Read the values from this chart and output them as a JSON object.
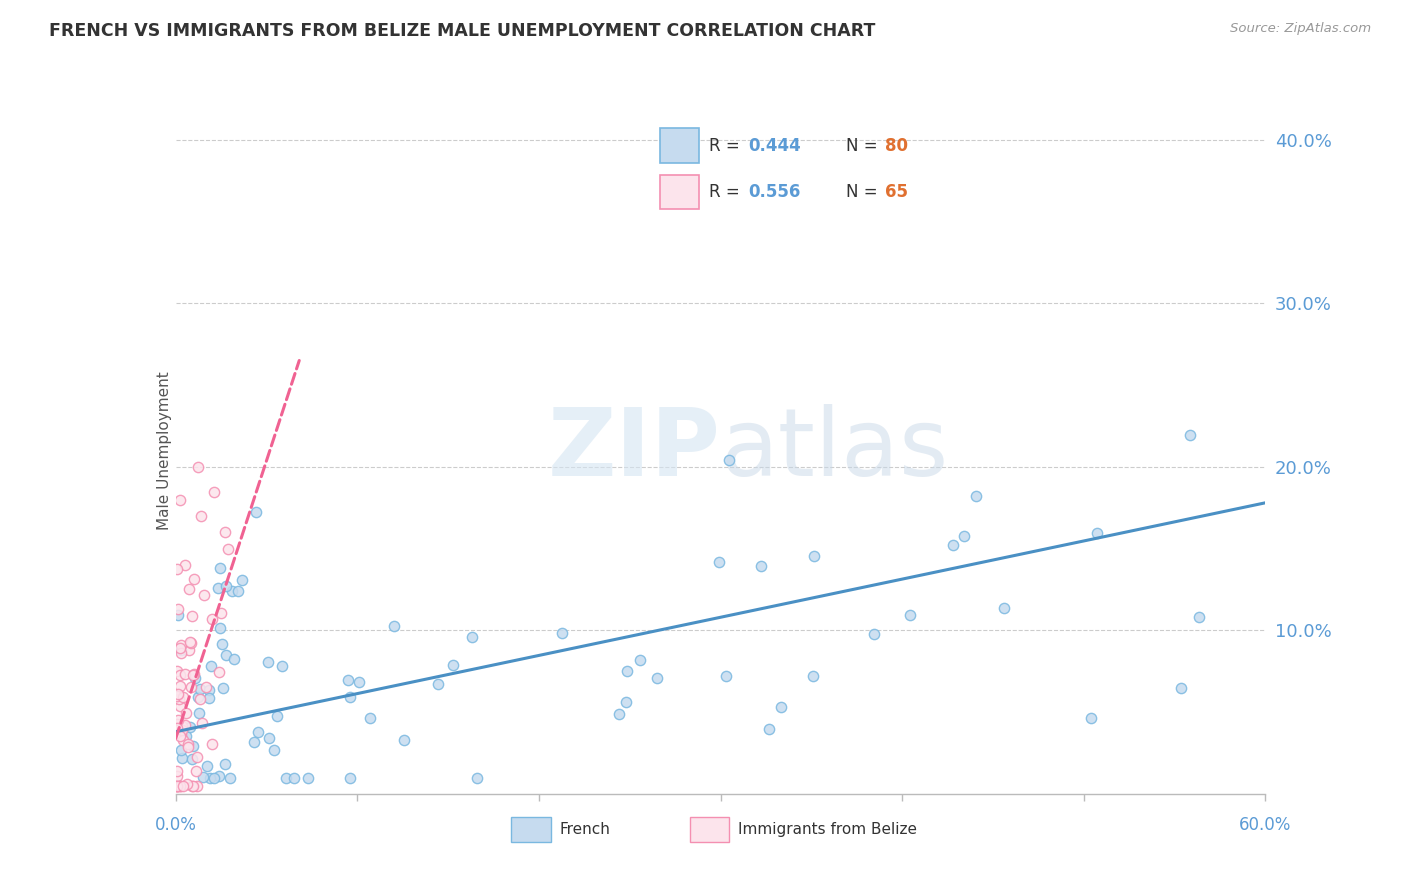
{
  "title": "FRENCH VS IMMIGRANTS FROM BELIZE MALE UNEMPLOYMENT CORRELATION CHART",
  "source": "Source: ZipAtlas.com",
  "ylabel": "Male Unemployment",
  "xlim": [
    0.0,
    0.6
  ],
  "ylim": [
    0.0,
    0.42
  ],
  "yticks": [
    0.1,
    0.2,
    0.3,
    0.4
  ],
  "ytick_labels": [
    "10.0%",
    "20.0%",
    "30.0%",
    "40.0%"
  ],
  "legend_R1": "0.444",
  "legend_N1": "80",
  "legend_R2": "0.556",
  "legend_N2": "65",
  "color_french": "#7ab8e0",
  "color_belize": "#f48fb1",
  "color_french_fill": "#c6dbef",
  "color_belize_fill": "#fce4ec",
  "color_french_line": "#4a90c4",
  "color_belize_line": "#f06292",
  "watermark_zip": "ZIP",
  "watermark_atlas": "atlas",
  "french_line_x": [
    0.0,
    0.6
  ],
  "french_line_y": [
    0.038,
    0.178
  ],
  "belize_line_x": [
    0.0,
    0.068
  ],
  "belize_line_y": [
    0.034,
    0.265
  ]
}
